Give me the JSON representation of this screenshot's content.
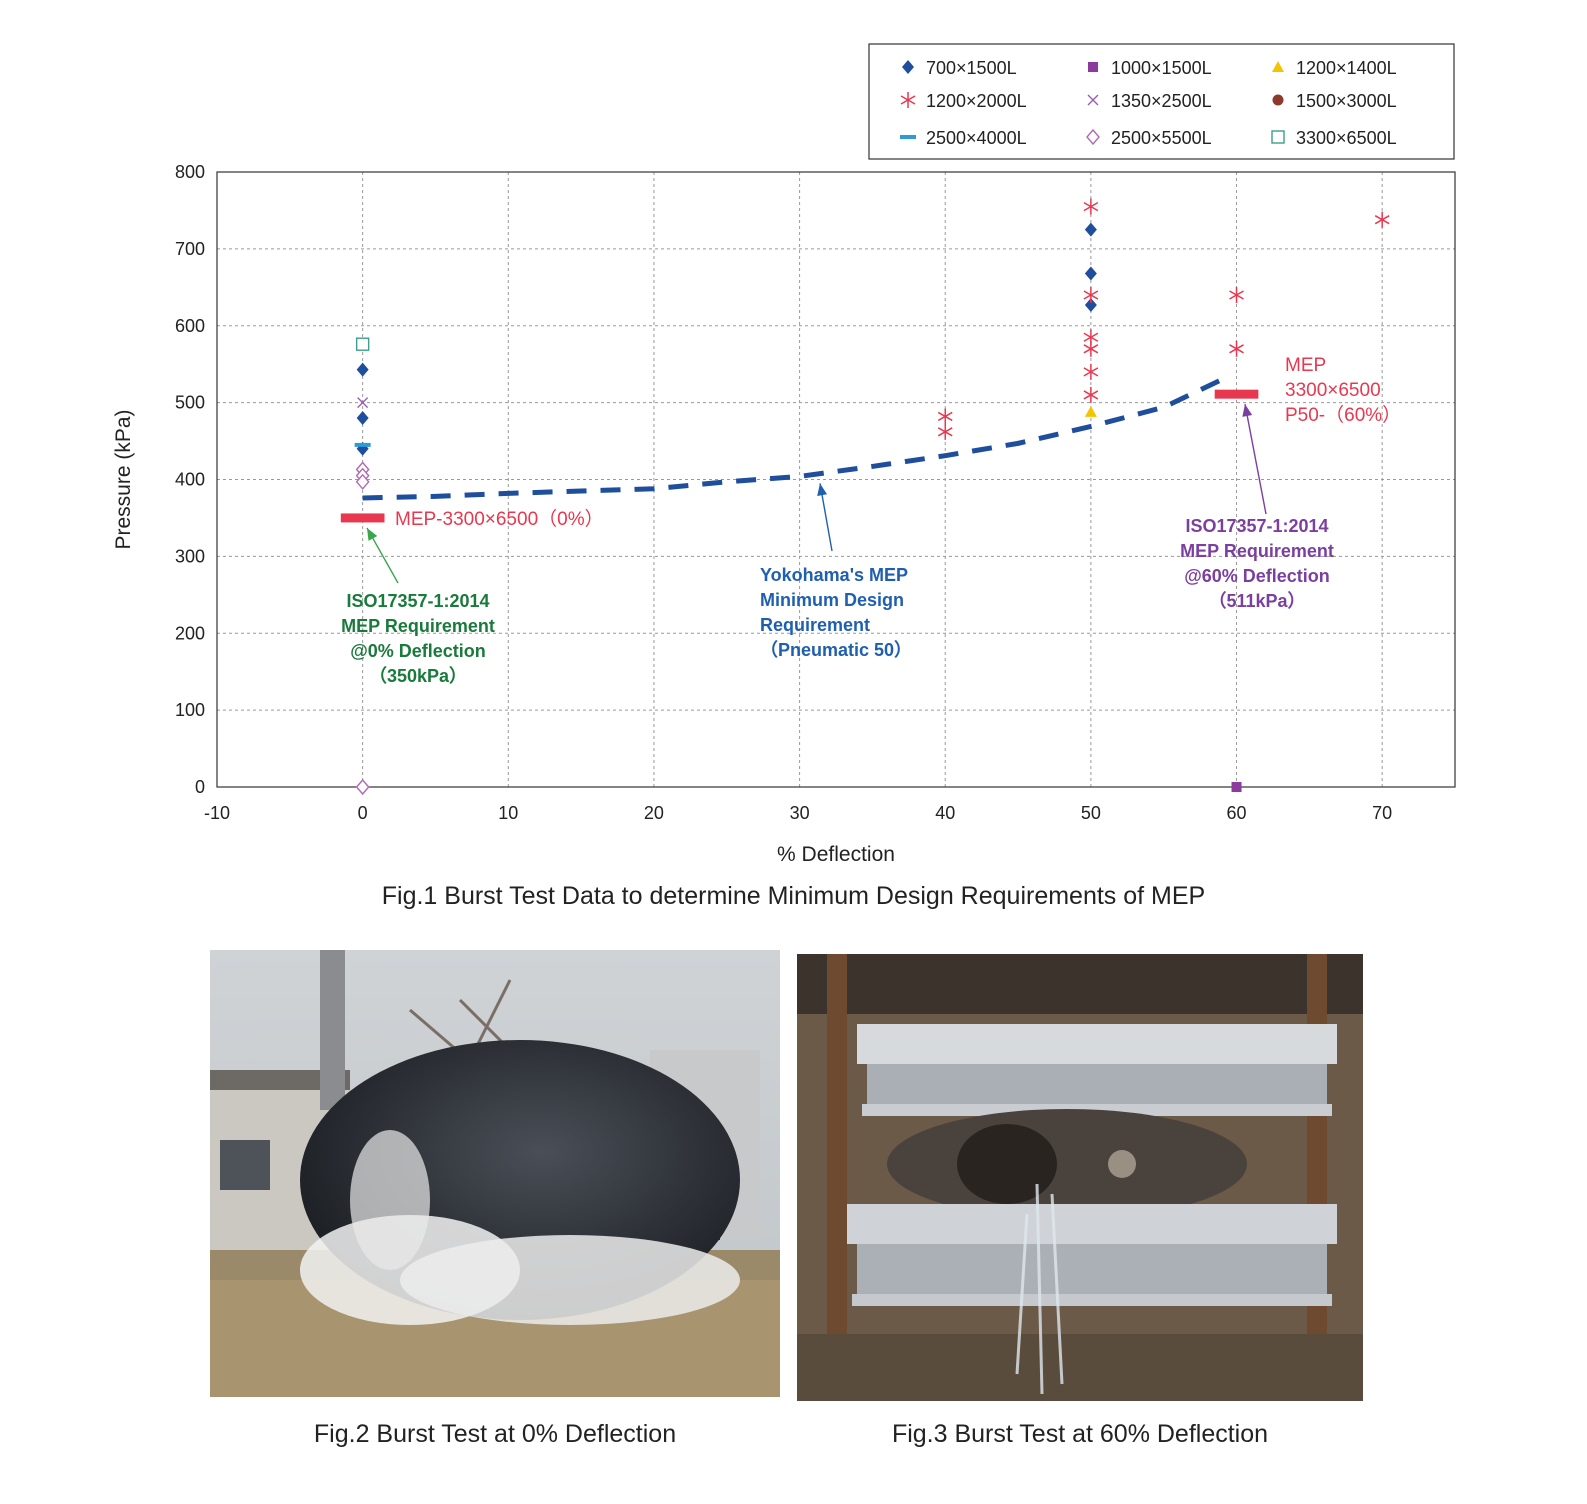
{
  "chart_data": {
    "type": "scatter",
    "xlabel": "% Deflection",
    "ylabel": "Pressure (kPa)",
    "xlim": [
      -10,
      75
    ],
    "ylim": [
      0,
      800
    ],
    "x_ticks": [
      -10,
      0,
      10,
      20,
      30,
      40,
      50,
      60,
      70
    ],
    "y_ticks": [
      0,
      100,
      200,
      300,
      400,
      500,
      600,
      700,
      800
    ],
    "grid": true,
    "legend_position": "top-right, above plot",
    "series": [
      {
        "name": "700×1500L",
        "marker": "filled-diamond",
        "color": "#1f4e9c",
        "points": [
          [
            0,
            543
          ],
          [
            0,
            480
          ],
          [
            0,
            440
          ],
          [
            50,
            725
          ],
          [
            50,
            668
          ],
          [
            50,
            627
          ]
        ]
      },
      {
        "name": "1000×1500L",
        "marker": "filled-square",
        "color": "#8b3a9e",
        "points": [
          [
            60,
            0
          ]
        ]
      },
      {
        "name": "1200×1400L",
        "marker": "filled-triangle",
        "color": "#f2c500",
        "points": [
          [
            50,
            488
          ]
        ]
      },
      {
        "name": "1200×2000L",
        "marker": "asterisk",
        "color": "#e8384f",
        "points": [
          [
            40,
            482
          ],
          [
            40,
            462
          ],
          [
            50,
            755
          ],
          [
            50,
            640
          ],
          [
            50,
            585
          ],
          [
            50,
            570
          ],
          [
            50,
            540
          ],
          [
            50,
            510
          ],
          [
            60,
            640
          ],
          [
            60,
            570
          ],
          [
            70,
            738
          ]
        ]
      },
      {
        "name": "1350×2500L",
        "marker": "x",
        "color": "#9b59b6",
        "points": [
          [
            0,
            500
          ]
        ]
      },
      {
        "name": "1500×3000L",
        "marker": "filled-circle",
        "color": "#8b3a2b",
        "points": []
      },
      {
        "name": "2500×4000L",
        "marker": "dash",
        "color": "#2e9ad6",
        "points": [
          [
            0,
            445
          ]
        ]
      },
      {
        "name": "2500×5500L",
        "marker": "open-diamond",
        "color": "#b06ab3",
        "points": [
          [
            0,
            413
          ],
          [
            0,
            405
          ],
          [
            0,
            397
          ],
          [
            0,
            0
          ]
        ]
      },
      {
        "name": "3300×6500L",
        "marker": "open-square",
        "color": "#3aa08a",
        "points": [
          [
            0,
            576
          ]
        ]
      }
    ],
    "curve": {
      "style": "dashed",
      "color": "#1f4e9c",
      "points": [
        [
          0,
          376
        ],
        [
          5,
          378
        ],
        [
          10,
          382
        ],
        [
          15,
          385
        ],
        [
          20,
          388
        ],
        [
          25,
          397
        ],
        [
          30,
          404
        ],
        [
          35,
          417
        ],
        [
          40,
          431
        ],
        [
          45,
          447
        ],
        [
          50,
          469
        ],
        [
          55,
          494
        ],
        [
          59,
          530
        ]
      ]
    },
    "requirement_bars": [
      {
        "x_from": -1.5,
        "x_to": 1.5,
        "y": 350,
        "color": "#e8384f"
      },
      {
        "x_from": 58.5,
        "x_to": 61.5,
        "y": 511,
        "color": "#e8384f"
      }
    ],
    "annotations": {
      "mep_0": {
        "text": "MEP-3300×6500（0%）",
        "color": "#e8384f"
      },
      "mep_60": {
        "lines": [
          "MEP",
          "3300×6500",
          "P50-（60%）"
        ],
        "color": "#e8384f"
      },
      "iso_0": {
        "lines": [
          "ISO17357-1:2014",
          "MEP Requirement",
          "@0% Deflection",
          "（350kPa）"
        ],
        "color": "#1a7a3c"
      },
      "yokohama": {
        "lines": [
          "Yokohama's MEP",
          "Minimum Design",
          "Requirement",
          "（Pneumatic 50）"
        ],
        "color": "#1f5fb0"
      },
      "iso_60": {
        "lines": [
          "ISO17357-1:2014",
          "MEP Requirement",
          "@60% Deflection",
          "（511kPa）"
        ],
        "color": "#7b3fa0"
      }
    }
  },
  "captions": {
    "fig1": "Fig.1 Burst Test Data to determine Minimum Design Requirements of MEP",
    "fig2": "Fig.2 Burst Test at 0% Deflection",
    "fig3": "Fig.3 Burst Test at 60% Deflection"
  }
}
